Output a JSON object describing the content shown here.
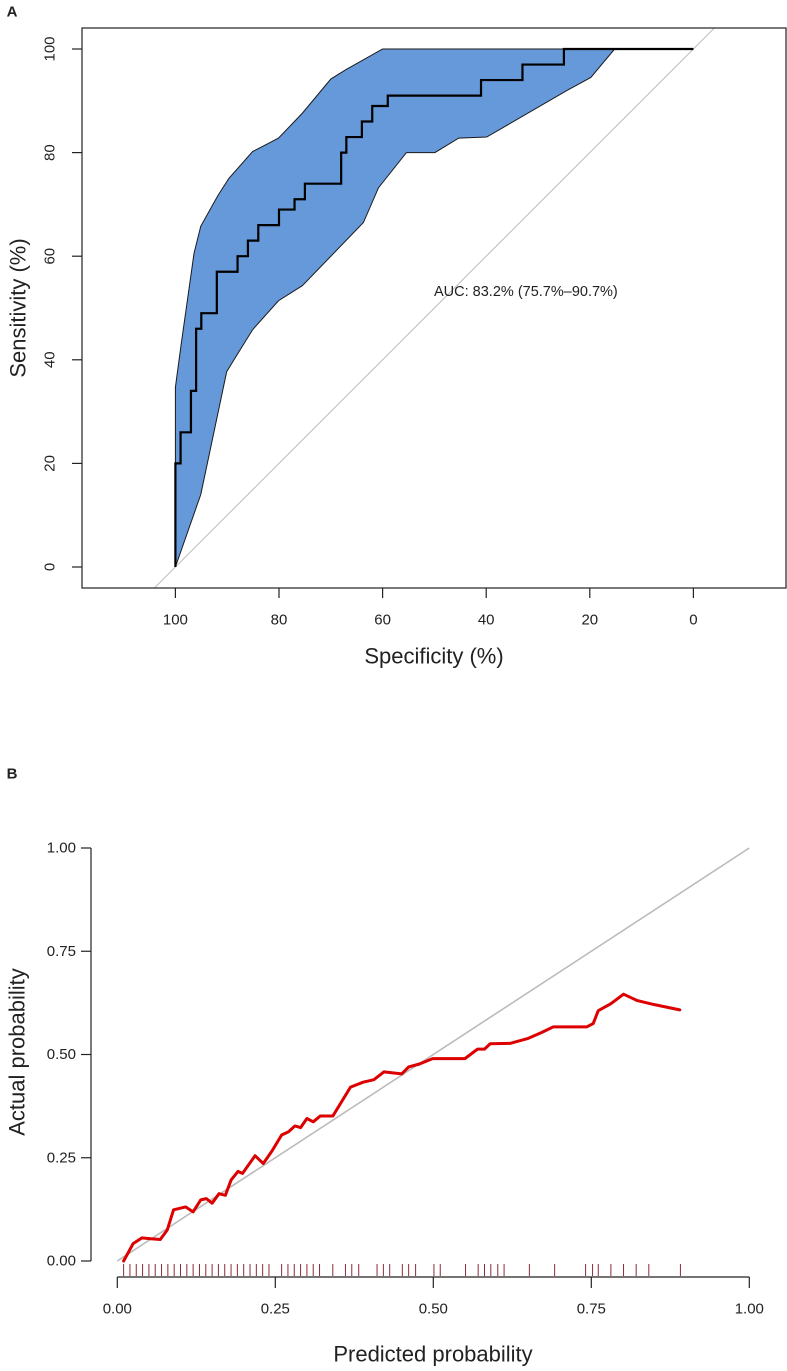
{
  "chart_data": [
    {
      "panel_label": "A",
      "type": "line",
      "subtype": "roc",
      "xlabel": "Specificity (%)",
      "ylabel": "Sensitivity (%)",
      "xlim": [
        118,
        -18
      ],
      "ylim": [
        -4,
        104
      ],
      "x_ticks": [
        100,
        80,
        60,
        40,
        20,
        0
      ],
      "x_tick_labels": [
        "100",
        "80",
        "60",
        "40",
        "20",
        "0"
      ],
      "y_ticks": [
        0,
        20,
        40,
        60,
        80,
        100
      ],
      "y_tick_labels": [
        "0",
        "20",
        "40",
        "60",
        "80",
        "100"
      ],
      "annotation": "AUC: 83.2% (75.7%–90.7%)",
      "colors": {
        "ci_band": "#6699d9",
        "roc": "#000000",
        "reference": "#bbbbbb"
      },
      "reference_line": {
        "from": [
          100,
          0
        ],
        "to": [
          0,
          100
        ]
      },
      "roc_curve": {
        "specificity": [
          100,
          100,
          99,
          99,
          97,
          97,
          96,
          96,
          95,
          95,
          92,
          92,
          88,
          88,
          86,
          86,
          84,
          84,
          80,
          80,
          77,
          77,
          75,
          75,
          68,
          68,
          67,
          67,
          64,
          64,
          62,
          62,
          59,
          59,
          41,
          41,
          33,
          33,
          25,
          25,
          0
        ],
        "sensitivity": [
          0,
          20,
          20,
          26,
          26,
          34,
          34,
          46,
          46,
          49,
          49,
          57,
          57,
          60,
          60,
          63,
          63,
          66,
          66,
          69,
          69,
          71,
          71,
          74,
          74,
          80,
          80,
          83,
          83,
          86,
          86,
          89,
          89,
          91,
          91,
          94,
          94,
          97,
          97,
          100,
          100
        ]
      },
      "ci_upper": {
        "specificity": [
          100,
          100,
          98.9,
          96.4,
          95.1,
          91.8,
          89.7,
          85.1,
          82.2,
          80.1,
          77.6,
          75.5,
          70,
          67.1,
          60,
          15.2
        ],
        "sensitivity": [
          0,
          34.7,
          42.9,
          60.6,
          65.8,
          71.7,
          75,
          80.2,
          81.7,
          82.8,
          85.4,
          87.6,
          94.2,
          96,
          100,
          100
        ]
      },
      "ci_lower": {
        "specificity": [
          100,
          95.1,
          90.1,
          89,
          85.1,
          80.1,
          75.5,
          63.7,
          60.8,
          55.4,
          49.9,
          45.3,
          39.9,
          24.4,
          19.8,
          15.2
        ],
        "sensitivity": [
          0,
          14,
          37.7,
          39.5,
          45.8,
          51.4,
          54.3,
          66.5,
          73.2,
          80,
          80,
          82.8,
          83,
          92,
          94.5,
          100
        ]
      }
    },
    {
      "panel_label": "B",
      "type": "line",
      "subtype": "calibration",
      "xlabel": "Predicted probability",
      "ylabel": "Actual probability",
      "xlim": [
        0,
        1
      ],
      "ylim": [
        0,
        1
      ],
      "x_ticks": [
        0,
        0.25,
        0.5,
        0.75,
        1
      ],
      "x_tick_labels": [
        "0.00",
        "0.25",
        "0.50",
        "0.75",
        "1.00"
      ],
      "y_ticks": [
        0,
        0.25,
        0.5,
        0.75,
        1
      ],
      "y_tick_labels": [
        "0.00",
        "0.25",
        "0.50",
        "0.75",
        "1.00"
      ],
      "colors": {
        "calibration": "#dd0000",
        "reference": "#bbbbbb",
        "rug": "#8b2a3a"
      },
      "reference_line": {
        "from": [
          0,
          0
        ],
        "to": [
          1,
          1
        ]
      },
      "calibration_curve": {
        "x": [
          0.01,
          0.025,
          0.039,
          0.053,
          0.068,
          0.079,
          0.089,
          0.108,
          0.12,
          0.132,
          0.141,
          0.15,
          0.161,
          0.171,
          0.18,
          0.191,
          0.198,
          0.218,
          0.231,
          0.245,
          0.26,
          0.271,
          0.281,
          0.29,
          0.3,
          0.31,
          0.321,
          0.341,
          0.369,
          0.389,
          0.406,
          0.422,
          0.45,
          0.461,
          0.478,
          0.499,
          0.55,
          0.57,
          0.581,
          0.59,
          0.622,
          0.65,
          0.671,
          0.69,
          0.743,
          0.753,
          0.761,
          0.781,
          0.801,
          0.822,
          0.849,
          0.89
        ],
        "y": [
          0,
          0.042,
          0.056,
          0.054,
          0.052,
          0.075,
          0.124,
          0.131,
          0.119,
          0.148,
          0.151,
          0.14,
          0.163,
          0.159,
          0.196,
          0.217,
          0.212,
          0.255,
          0.236,
          0.267,
          0.305,
          0.313,
          0.327,
          0.323,
          0.345,
          0.337,
          0.351,
          0.351,
          0.421,
          0.433,
          0.439,
          0.458,
          0.453,
          0.47,
          0.477,
          0.49,
          0.49,
          0.513,
          0.513,
          0.526,
          0.527,
          0.539,
          0.553,
          0.567,
          0.567,
          0.575,
          0.606,
          0.623,
          0.646,
          0.631,
          0.621,
          0.608
        ]
      },
      "rug": [
        0.01,
        0.02,
        0.03,
        0.04,
        0.05,
        0.06,
        0.07,
        0.08,
        0.09,
        0.1,
        0.11,
        0.12,
        0.13,
        0.14,
        0.15,
        0.16,
        0.17,
        0.18,
        0.19,
        0.2,
        0.21,
        0.22,
        0.23,
        0.24,
        0.26,
        0.27,
        0.28,
        0.29,
        0.3,
        0.31,
        0.32,
        0.341,
        0.361,
        0.371,
        0.382,
        0.411,
        0.421,
        0.431,
        0.451,
        0.461,
        0.472,
        0.501,
        0.511,
        0.551,
        0.571,
        0.581,
        0.591,
        0.602,
        0.612,
        0.652,
        0.692,
        0.741,
        0.752,
        0.761,
        0.781,
        0.801,
        0.821,
        0.841,
        0.891
      ]
    }
  ]
}
